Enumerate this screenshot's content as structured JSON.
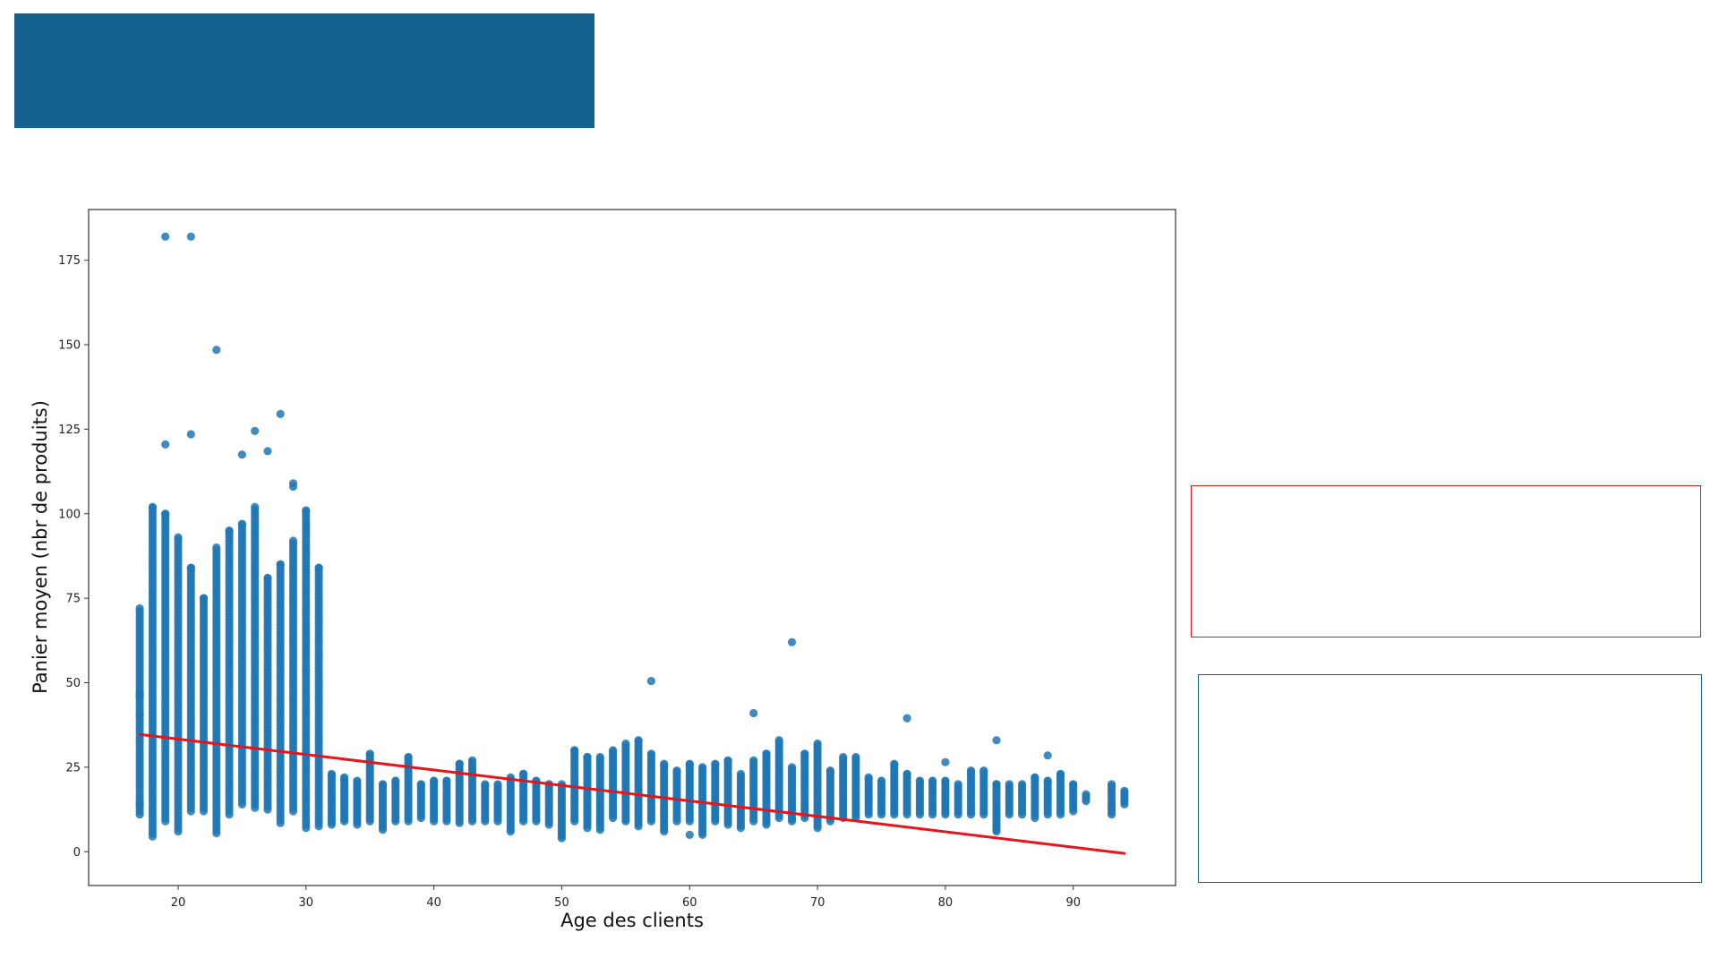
{
  "colors": {
    "banner": "#16628f",
    "points": "#1f77b4",
    "trend": "#e8141b",
    "red_box": "#e8141b",
    "blue_box": "#16628f"
  },
  "chart_data": {
    "type": "scatter",
    "title": "",
    "xlabel": "Age des clients",
    "ylabel": "Panier moyen (nbr de produits)",
    "xlim": [
      13,
      98
    ],
    "ylim": [
      -10,
      190
    ],
    "xticks": [
      20,
      30,
      40,
      50,
      60,
      70,
      80,
      90
    ],
    "yticks": [
      0,
      25,
      50,
      75,
      100,
      125,
      150,
      175
    ],
    "grid": false,
    "legend": "none",
    "columns": [
      {
        "age": 17,
        "min": 11,
        "max": 72
      },
      {
        "age": 18,
        "min": 4.5,
        "max": 102
      },
      {
        "age": 19,
        "min": 9,
        "max": 100
      },
      {
        "age": 20,
        "min": 6,
        "max": 93
      },
      {
        "age": 21,
        "min": 12,
        "max": 84
      },
      {
        "age": 22,
        "min": 12,
        "max": 75
      },
      {
        "age": 23,
        "min": 5.5,
        "max": 90
      },
      {
        "age": 24,
        "min": 11,
        "max": 95
      },
      {
        "age": 25,
        "min": 14,
        "max": 97
      },
      {
        "age": 26,
        "min": 13,
        "max": 102
      },
      {
        "age": 27,
        "min": 12.5,
        "max": 81
      },
      {
        "age": 28,
        "min": 8.5,
        "max": 85
      },
      {
        "age": 29,
        "min": 12,
        "max": 92
      },
      {
        "age": 30,
        "min": 7,
        "max": 101
      },
      {
        "age": 31,
        "min": 7.5,
        "max": 84
      },
      {
        "age": 32,
        "min": 8,
        "max": 23
      },
      {
        "age": 33,
        "min": 9,
        "max": 22
      },
      {
        "age": 34,
        "min": 8,
        "max": 21
      },
      {
        "age": 35,
        "min": 9,
        "max": 29
      },
      {
        "age": 36,
        "min": 6.5,
        "max": 20
      },
      {
        "age": 37,
        "min": 9,
        "max": 21
      },
      {
        "age": 38,
        "min": 9,
        "max": 28
      },
      {
        "age": 39,
        "min": 10,
        "max": 20
      },
      {
        "age": 40,
        "min": 9,
        "max": 21
      },
      {
        "age": 41,
        "min": 9,
        "max": 21
      },
      {
        "age": 42,
        "min": 8.5,
        "max": 26
      },
      {
        "age": 43,
        "min": 9,
        "max": 27
      },
      {
        "age": 44,
        "min": 9,
        "max": 20
      },
      {
        "age": 45,
        "min": 9,
        "max": 20
      },
      {
        "age": 46,
        "min": 6,
        "max": 22
      },
      {
        "age": 47,
        "min": 9,
        "max": 23
      },
      {
        "age": 48,
        "min": 9,
        "max": 21
      },
      {
        "age": 49,
        "min": 8,
        "max": 20
      },
      {
        "age": 50,
        "min": 4,
        "max": 20
      },
      {
        "age": 51,
        "min": 9,
        "max": 30
      },
      {
        "age": 52,
        "min": 7,
        "max": 28
      },
      {
        "age": 53,
        "min": 6.5,
        "max": 28
      },
      {
        "age": 54,
        "min": 10,
        "max": 30
      },
      {
        "age": 55,
        "min": 9,
        "max": 32
      },
      {
        "age": 56,
        "min": 7.5,
        "max": 33
      },
      {
        "age": 57,
        "min": 9,
        "max": 29
      },
      {
        "age": 58,
        "min": 6,
        "max": 26
      },
      {
        "age": 59,
        "min": 9,
        "max": 24
      },
      {
        "age": 60,
        "min": 9,
        "max": 26
      },
      {
        "age": 61,
        "min": 5,
        "max": 25
      },
      {
        "age": 62,
        "min": 9,
        "max": 26
      },
      {
        "age": 63,
        "min": 8,
        "max": 27
      },
      {
        "age": 64,
        "min": 7,
        "max": 23
      },
      {
        "age": 65,
        "min": 9,
        "max": 27
      },
      {
        "age": 66,
        "min": 8,
        "max": 29
      },
      {
        "age": 67,
        "min": 10,
        "max": 33
      },
      {
        "age": 68,
        "min": 9,
        "max": 25
      },
      {
        "age": 69,
        "min": 10,
        "max": 29
      },
      {
        "age": 70,
        "min": 7,
        "max": 32
      },
      {
        "age": 71,
        "min": 9,
        "max": 24
      },
      {
        "age": 72,
        "min": 10,
        "max": 28
      },
      {
        "age": 73,
        "min": 10,
        "max": 28
      },
      {
        "age": 74,
        "min": 11,
        "max": 22
      },
      {
        "age": 75,
        "min": 11,
        "max": 21
      },
      {
        "age": 76,
        "min": 11,
        "max": 26
      },
      {
        "age": 77,
        "min": 11,
        "max": 23
      },
      {
        "age": 78,
        "min": 11,
        "max": 21
      },
      {
        "age": 79,
        "min": 11,
        "max": 21
      },
      {
        "age": 80,
        "min": 11,
        "max": 21
      },
      {
        "age": 81,
        "min": 11,
        "max": 20
      },
      {
        "age": 82,
        "min": 11,
        "max": 24
      },
      {
        "age": 83,
        "min": 11,
        "max": 24
      },
      {
        "age": 84,
        "min": 6,
        "max": 20
      },
      {
        "age": 85,
        "min": 11,
        "max": 20
      },
      {
        "age": 86,
        "min": 11,
        "max": 20
      },
      {
        "age": 87,
        "min": 10,
        "max": 22
      },
      {
        "age": 88,
        "min": 11,
        "max": 21
      },
      {
        "age": 89,
        "min": 11,
        "max": 23
      },
      {
        "age": 90,
        "min": 12,
        "max": 20
      },
      {
        "age": 91,
        "min": 15,
        "max": 17
      },
      {
        "age": 93,
        "min": 11,
        "max": 20
      },
      {
        "age": 94,
        "min": 14,
        "max": 18
      }
    ],
    "outliers": [
      {
        "x": 19,
        "y": 182
      },
      {
        "x": 21,
        "y": 182
      },
      {
        "x": 23,
        "y": 148.5
      },
      {
        "x": 28,
        "y": 129.5
      },
      {
        "x": 26,
        "y": 124.5
      },
      {
        "x": 21,
        "y": 123.5
      },
      {
        "x": 19,
        "y": 120.5
      },
      {
        "x": 27,
        "y": 118.5
      },
      {
        "x": 25,
        "y": 117.5
      },
      {
        "x": 29,
        "y": 109
      },
      {
        "x": 29,
        "y": 108
      },
      {
        "x": 57,
        "y": 50.5
      },
      {
        "x": 68,
        "y": 62
      },
      {
        "x": 65,
        "y": 41
      },
      {
        "x": 77,
        "y": 39.5
      },
      {
        "x": 84,
        "y": 33
      },
      {
        "x": 88,
        "y": 28.5
      },
      {
        "x": 80,
        "y": 26.5
      },
      {
        "x": 60,
        "y": 5
      },
      {
        "x": 84,
        "y": 6.5
      },
      {
        "x": 17,
        "y": 47
      },
      {
        "x": 17,
        "y": 46
      },
      {
        "x": 17,
        "y": 40.5
      },
      {
        "x": 17,
        "y": 14
      }
    ],
    "trend": {
      "x": [
        17,
        94
      ],
      "y": [
        34.7,
        -0.5
      ]
    }
  }
}
